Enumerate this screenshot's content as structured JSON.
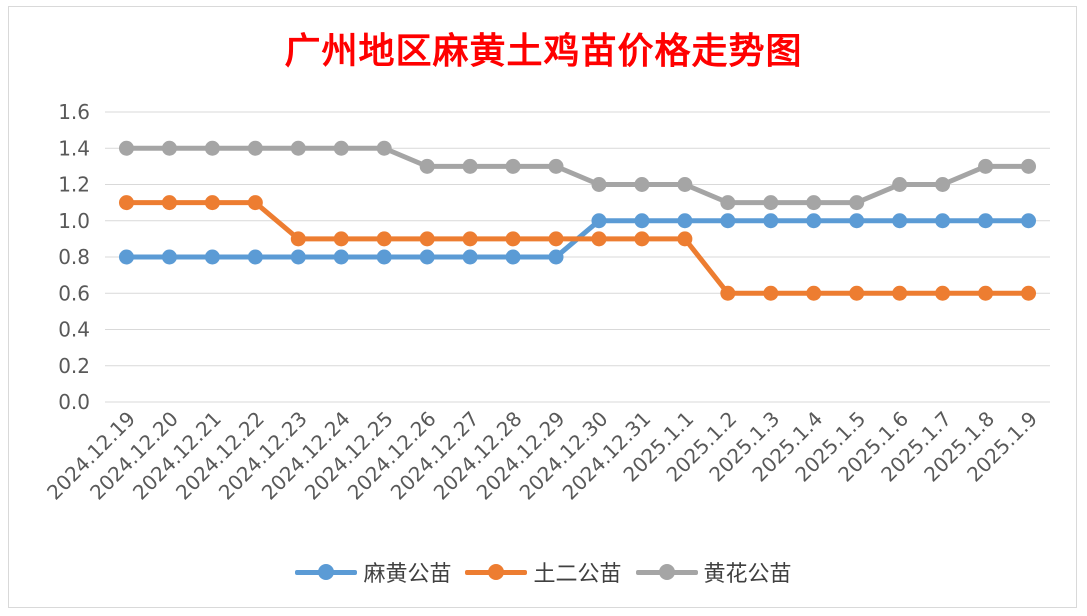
{
  "chart_data": {
    "type": "line",
    "title": "广州地区麻黄土鸡苗价格走势图",
    "xlabel": "",
    "ylabel": "",
    "ylim": [
      0,
      1.6
    ],
    "yticks": [
      "0.0",
      "0.2",
      "0.4",
      "0.6",
      "0.8",
      "1.0",
      "1.2",
      "1.4",
      "1.6"
    ],
    "grid": true,
    "legend_position": "bottom",
    "categories": [
      "2024.12.19",
      "2024.12.20",
      "2024.12.21",
      "2024.12.22",
      "2024.12.23",
      "2024.12.24",
      "2024.12.25",
      "2024.12.26",
      "2024.12.27",
      "2024.12.28",
      "2024.12.29",
      "2024.12.30",
      "2024.12.31",
      "2025.1.1",
      "2025.1.2",
      "2025.1.3",
      "2025.1.4",
      "2025.1.5",
      "2025.1.6",
      "2025.1.7",
      "2025.1.8",
      "2025.1.9"
    ],
    "series": [
      {
        "name": "麻黄公苗",
        "color": "#5b9bd5",
        "values": [
          0.8,
          0.8,
          0.8,
          0.8,
          0.8,
          0.8,
          0.8,
          0.8,
          0.8,
          0.8,
          0.8,
          1.0,
          1.0,
          1.0,
          1.0,
          1.0,
          1.0,
          1.0,
          1.0,
          1.0,
          1.0,
          1.0
        ]
      },
      {
        "name": "土二公苗",
        "color": "#ed7d31",
        "values": [
          1.1,
          1.1,
          1.1,
          1.1,
          0.9,
          0.9,
          0.9,
          0.9,
          0.9,
          0.9,
          0.9,
          0.9,
          0.9,
          0.9,
          0.6,
          0.6,
          0.6,
          0.6,
          0.6,
          0.6,
          0.6,
          0.6
        ]
      },
      {
        "name": "黄花公苗",
        "color": "#a5a5a5",
        "values": [
          1.4,
          1.4,
          1.4,
          1.4,
          1.4,
          1.4,
          1.4,
          1.3,
          1.3,
          1.3,
          1.3,
          1.2,
          1.2,
          1.2,
          1.1,
          1.1,
          1.1,
          1.1,
          1.2,
          1.2,
          1.3,
          1.3
        ]
      }
    ]
  }
}
